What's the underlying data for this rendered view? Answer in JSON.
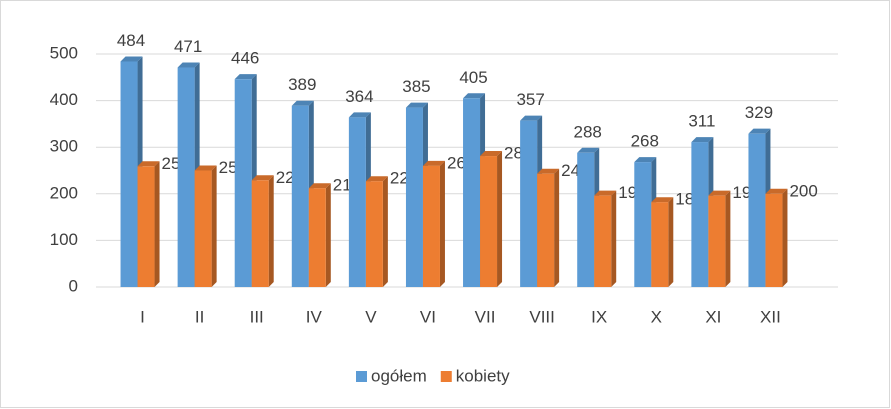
{
  "chart_data": {
    "type": "bar",
    "categories": [
      "I",
      "II",
      "III",
      "IV",
      "V",
      "VI",
      "VII",
      "VIII",
      "IX",
      "X",
      "XI",
      "XII"
    ],
    "series": [
      {
        "name": "ogółem",
        "color": "#5b9bd5",
        "values": [
          484,
          471,
          446,
          389,
          364,
          385,
          405,
          357,
          288,
          268,
          311,
          329
        ]
      },
      {
        "name": "kobiety",
        "color": "#ed7d31",
        "values": [
          259,
          250,
          229,
          212,
          227,
          260,
          281,
          243,
          196,
          182,
          196,
          200
        ]
      }
    ],
    "ylim": [
      0,
      500
    ],
    "yticks": [
      0,
      100,
      200,
      300,
      400,
      500
    ],
    "grid": true,
    "legend": "bottom"
  }
}
